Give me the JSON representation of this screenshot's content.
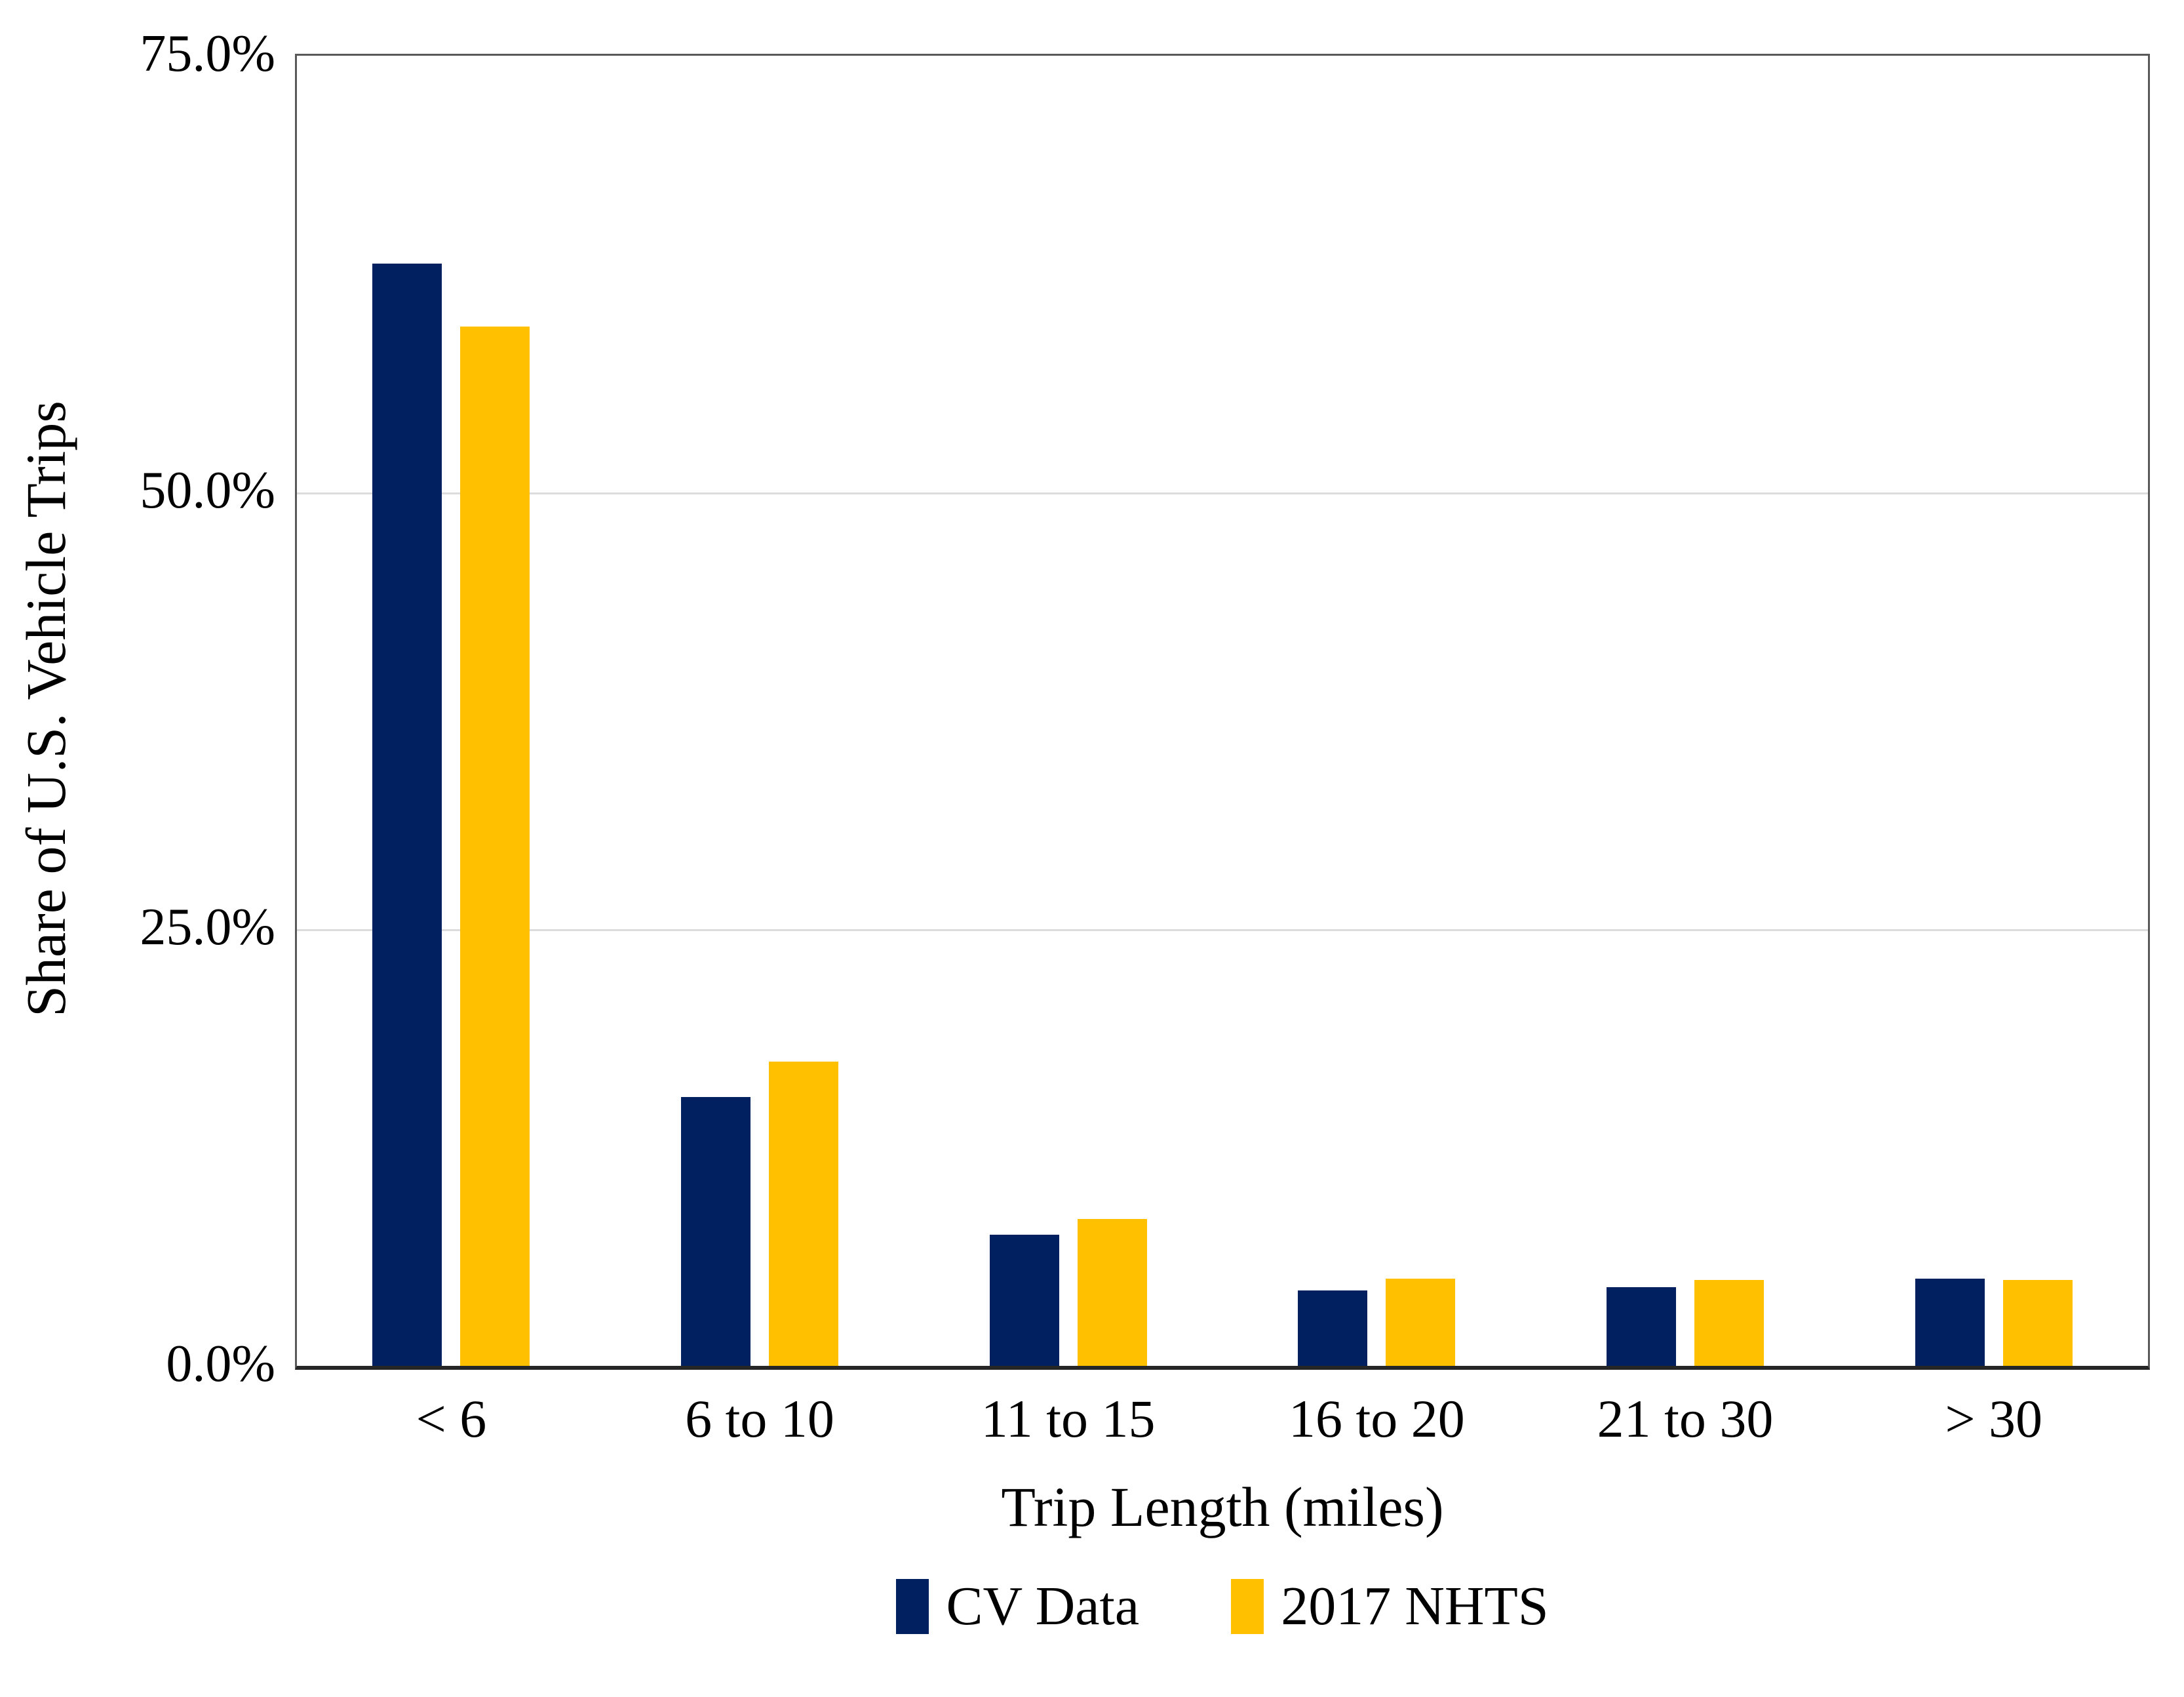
{
  "chart_data": {
    "type": "bar",
    "title": "",
    "xlabel": "Trip Length (miles)",
    "ylabel": "Share of U.S. Vehicle Trips",
    "categories": [
      "< 6",
      "6 to 10",
      "11 to 15",
      "16 to 20",
      "21 to 30",
      "> 30"
    ],
    "series": [
      {
        "name": "CV Data",
        "color": "#002060",
        "values": [
          63.1,
          15.4,
          7.5,
          4.3,
          4.5,
          5.0
        ]
      },
      {
        "name": "2017 NHTS",
        "color": "#FFC000",
        "values": [
          59.5,
          17.4,
          8.4,
          5.0,
          4.9,
          4.9
        ]
      }
    ],
    "ylim": [
      0,
      75
    ],
    "yticks": [
      {
        "label": "75.0%",
        "value": 75
      },
      {
        "label": "50.0%",
        "value": 50
      },
      {
        "label": "25.0%",
        "value": 25
      },
      {
        "label": "0.0%",
        "value": 0
      }
    ],
    "gridlines": [
      25,
      50
    ],
    "grid_on": true,
    "legend_position": "bottom",
    "colors": {
      "plot_border": "#595959",
      "axis_line": "#262626",
      "gridline": "#dcdcdc",
      "text": "#000000",
      "background": "#ffffff"
    }
  }
}
